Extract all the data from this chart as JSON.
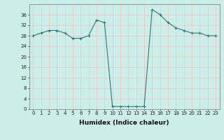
{
  "x": [
    0,
    1,
    2,
    3,
    4,
    5,
    6,
    7,
    8,
    9,
    10,
    11,
    12,
    13,
    14,
    15,
    16,
    17,
    18,
    19,
    20,
    21,
    22,
    23
  ],
  "y": [
    28,
    29,
    30,
    30,
    29,
    27,
    27,
    28,
    34,
    33,
    1,
    1,
    1,
    1,
    1,
    38,
    36,
    33,
    31,
    30,
    29,
    29,
    28,
    28
  ],
  "line_color": "#2a7a7a",
  "marker": "+",
  "marker_size": 3,
  "marker_linewidth": 0.8,
  "line_width": 0.8,
  "background_color": "#cceee8",
  "grid_color_major": "#f5c0c0",
  "grid_color_minor": "#cceee8",
  "xlabel": "Humidex (Indice chaleur)",
  "ylim": [
    0,
    40
  ],
  "xlim": [
    -0.5,
    23.5
  ],
  "yticks": [
    0,
    4,
    8,
    12,
    16,
    20,
    24,
    28,
    32,
    36
  ],
  "xticks": [
    0,
    1,
    2,
    3,
    4,
    5,
    6,
    7,
    8,
    9,
    10,
    11,
    12,
    13,
    14,
    15,
    16,
    17,
    18,
    19,
    20,
    21,
    22,
    23
  ],
  "tick_fontsize": 5,
  "xlabel_fontsize": 6.5
}
